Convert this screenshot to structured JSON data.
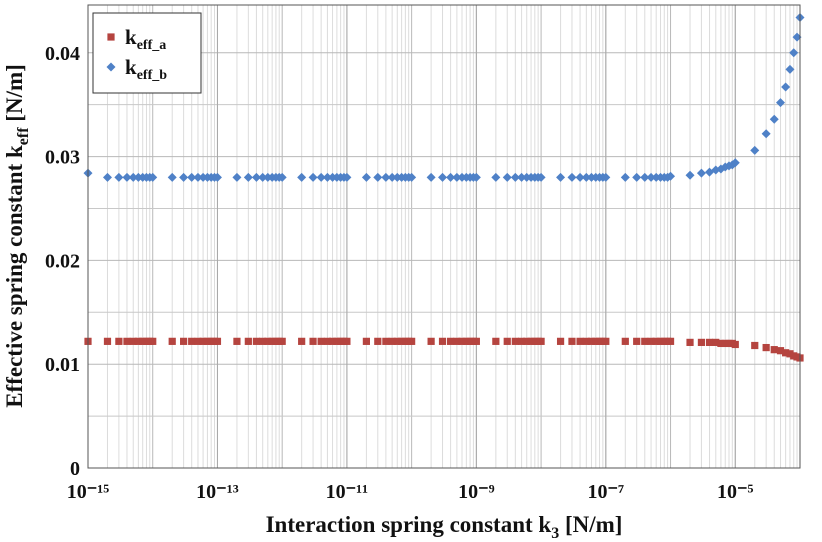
{
  "chart_data": {
    "type": "scatter",
    "x_label": {
      "text": "Interaction spring constant k",
      "sub": "3",
      "unit": " [N/m]"
    },
    "y_label": {
      "text": "Effective spring constant k",
      "sub": "eff",
      "unit": " [N/m]"
    },
    "xscale": "log",
    "grid": true,
    "legend": "top-left",
    "xlim": [
      1e-15,
      0.0001
    ],
    "ylim": [
      0,
      0.0446
    ],
    "xticks": [
      {
        "value": 1e-15,
        "label": "10⁻¹⁵"
      },
      {
        "value": 1e-13,
        "label": "10⁻¹³"
      },
      {
        "value": 1e-11,
        "label": "10⁻¹¹"
      },
      {
        "value": 1e-09,
        "label": "10⁻⁹"
      },
      {
        "value": 1e-07,
        "label": "10⁻⁷"
      },
      {
        "value": 1e-05,
        "label": "10⁻⁵"
      }
    ],
    "yticks": [
      0,
      0.01,
      0.02,
      0.03,
      0.04
    ],
    "x": [
      1e-15,
      2e-15,
      3e-15,
      4e-15,
      5e-15,
      6e-15,
      7e-15,
      8e-15,
      9e-15,
      1e-14,
      2e-14,
      3e-14,
      4e-14,
      5e-14,
      6e-14,
      7e-14,
      8e-14,
      9e-14,
      1e-13,
      2e-13,
      3e-13,
      4e-13,
      5e-13,
      6e-13,
      7e-13,
      8e-13,
      9e-13,
      1e-12,
      2e-12,
      3e-12,
      4e-12,
      5e-12,
      6e-12,
      7e-12,
      8e-12,
      9e-12,
      1e-11,
      2e-11,
      3e-11,
      4e-11,
      5e-11,
      6e-11,
      7e-11,
      8e-11,
      9e-11,
      1e-10,
      2e-10,
      3e-10,
      4e-10,
      5e-10,
      6e-10,
      7e-10,
      8e-10,
      9e-10,
      1e-09,
      2e-09,
      3e-09,
      4e-09,
      5e-09,
      6e-09,
      7e-09,
      8e-09,
      9e-09,
      1e-08,
      2e-08,
      3e-08,
      4e-08,
      5e-08,
      6e-08,
      7e-08,
      8e-08,
      9e-08,
      1e-07,
      2e-07,
      3e-07,
      4e-07,
      5e-07,
      6e-07,
      7e-07,
      8e-07,
      9e-07,
      1e-06,
      2e-06,
      3e-06,
      4e-06,
      5e-06,
      6e-06,
      7e-06,
      8e-06,
      9e-06,
      1e-05,
      2e-05,
      3e-05,
      4e-05,
      5e-05,
      6e-05,
      7e-05,
      8e-05,
      9e-05,
      0.0001
    ],
    "series": [
      {
        "name": "k",
        "name_sub": "eff_a",
        "color": "#b5443f",
        "marker": "square",
        "values": [
          0.0122,
          0.0122,
          0.0122,
          0.0122,
          0.0122,
          0.0122,
          0.0122,
          0.0122,
          0.0122,
          0.0122,
          0.0122,
          0.0122,
          0.0122,
          0.0122,
          0.0122,
          0.0122,
          0.0122,
          0.0122,
          0.0122,
          0.0122,
          0.0122,
          0.0122,
          0.0122,
          0.0122,
          0.0122,
          0.0122,
          0.0122,
          0.0122,
          0.0122,
          0.0122,
          0.0122,
          0.0122,
          0.0122,
          0.0122,
          0.0122,
          0.0122,
          0.0122,
          0.0122,
          0.0122,
          0.0122,
          0.0122,
          0.0122,
          0.0122,
          0.0122,
          0.0122,
          0.0122,
          0.0122,
          0.0122,
          0.0122,
          0.0122,
          0.0122,
          0.0122,
          0.0122,
          0.0122,
          0.0122,
          0.0122,
          0.0122,
          0.0122,
          0.0122,
          0.0122,
          0.0122,
          0.0122,
          0.0122,
          0.0122,
          0.0122,
          0.0122,
          0.0122,
          0.0122,
          0.0122,
          0.0122,
          0.0122,
          0.0122,
          0.0122,
          0.0122,
          0.0122,
          0.0122,
          0.0122,
          0.0122,
          0.0122,
          0.0122,
          0.0122,
          0.0122,
          0.0121,
          0.0121,
          0.0121,
          0.0121,
          0.012,
          0.012,
          0.012,
          0.012,
          0.0119,
          0.0118,
          0.0116,
          0.0114,
          0.0113,
          0.0111,
          0.011,
          0.0108,
          0.0107,
          0.0106
        ]
      },
      {
        "name": "k",
        "name_sub": "eff_b",
        "color": "#4f81c7",
        "marker": "diamond",
        "values": [
          0.0284,
          0.028,
          0.028,
          0.028,
          0.028,
          0.028,
          0.028,
          0.028,
          0.028,
          0.028,
          0.028,
          0.028,
          0.028,
          0.028,
          0.028,
          0.028,
          0.028,
          0.028,
          0.028,
          0.028,
          0.028,
          0.028,
          0.028,
          0.028,
          0.028,
          0.028,
          0.028,
          0.028,
          0.028,
          0.028,
          0.028,
          0.028,
          0.028,
          0.028,
          0.028,
          0.028,
          0.028,
          0.028,
          0.028,
          0.028,
          0.028,
          0.028,
          0.028,
          0.028,
          0.028,
          0.028,
          0.028,
          0.028,
          0.028,
          0.028,
          0.028,
          0.028,
          0.028,
          0.028,
          0.028,
          0.028,
          0.028,
          0.028,
          0.028,
          0.028,
          0.028,
          0.028,
          0.028,
          0.028,
          0.028,
          0.028,
          0.028,
          0.028,
          0.028,
          0.028,
          0.028,
          0.028,
          0.028,
          0.028,
          0.028,
          0.028,
          0.028,
          0.028,
          0.028,
          0.028,
          0.028,
          0.0281,
          0.0282,
          0.0284,
          0.0285,
          0.0287,
          0.0288,
          0.029,
          0.0291,
          0.0292,
          0.0294,
          0.0306,
          0.0322,
          0.0336,
          0.0352,
          0.0367,
          0.0384,
          0.04,
          0.0415,
          0.0434
        ]
      }
    ]
  }
}
